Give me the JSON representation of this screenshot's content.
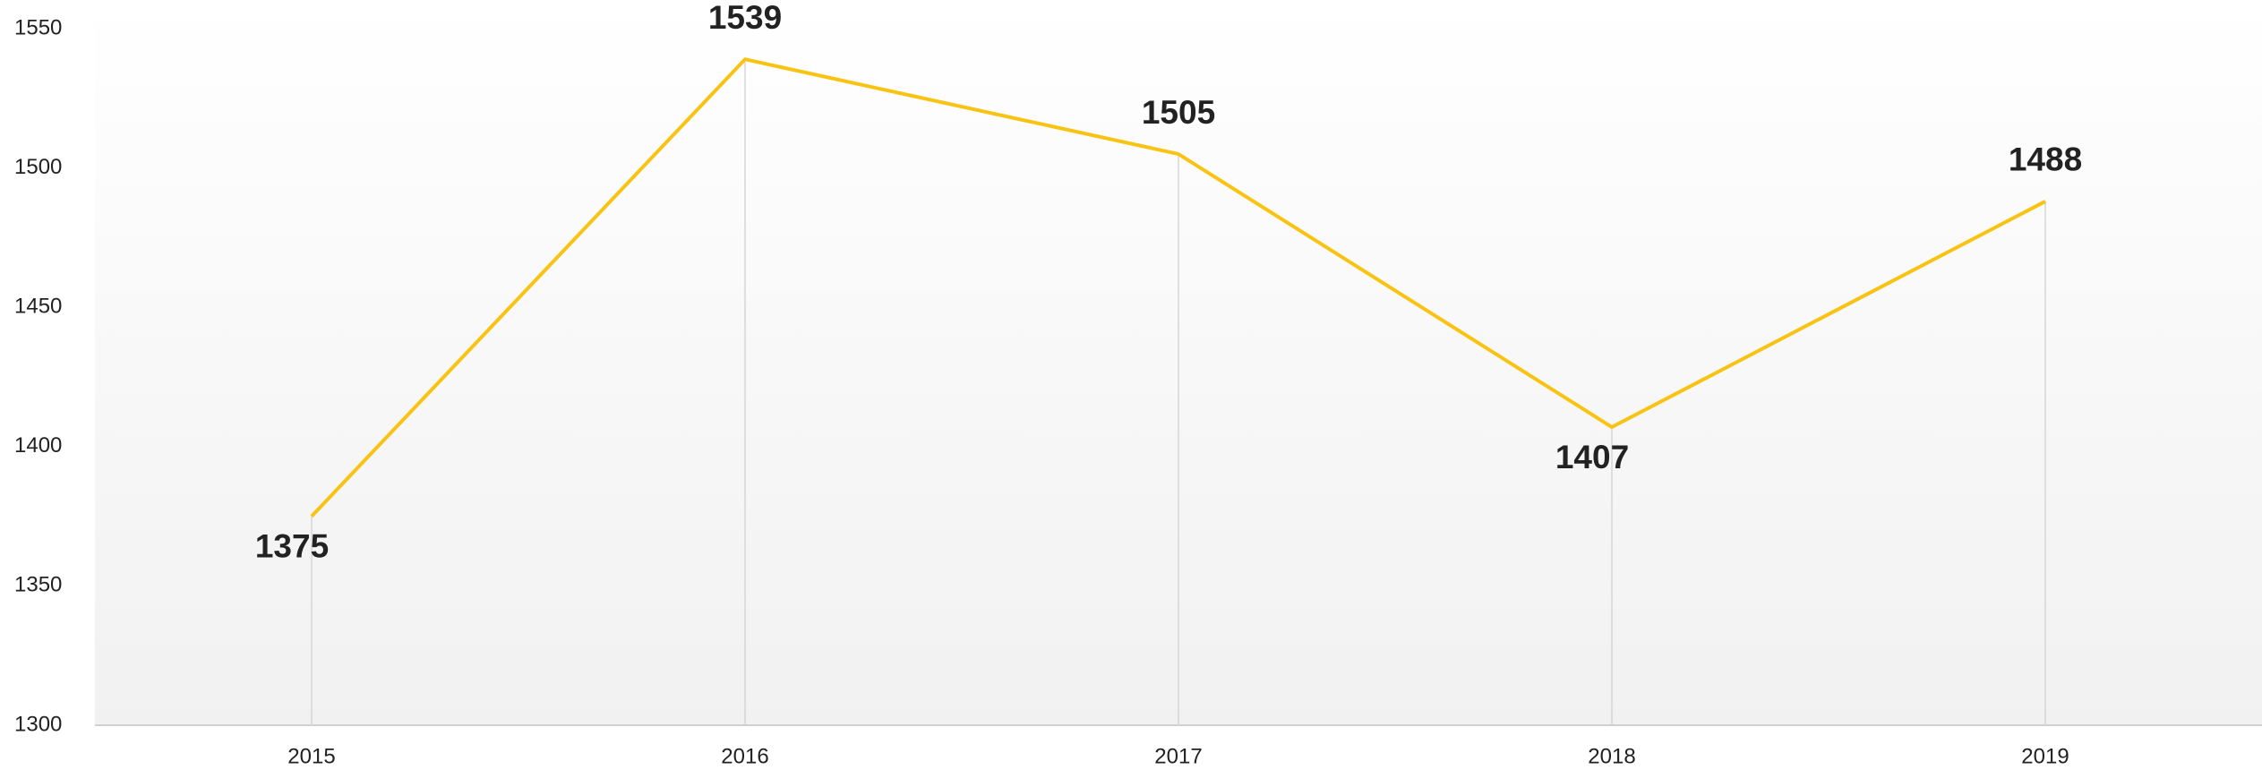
{
  "chart_data": {
    "type": "line",
    "categories": [
      "2015",
      "2016",
      "2017",
      "2018",
      "2019"
    ],
    "series": [
      {
        "name": null,
        "color": "#f9c313",
        "values": [
          1375,
          1539,
          1505,
          1407,
          1488
        ]
      }
    ],
    "label_color": "#b8000f",
    "ylim": [
      1300,
      1550
    ],
    "yticks": [
      1300,
      1350,
      1400,
      1450,
      1500,
      1550
    ],
    "drop_lines": true
  }
}
